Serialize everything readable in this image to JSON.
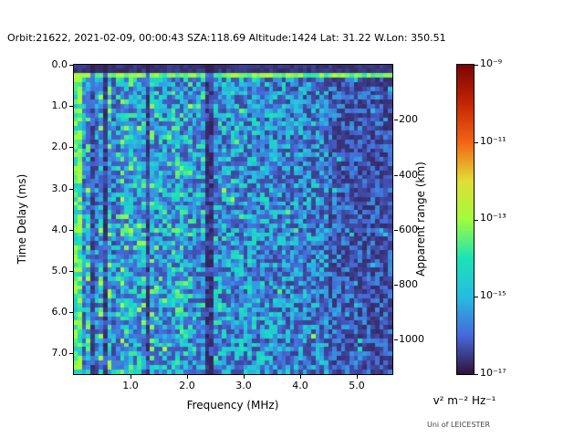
{
  "title": "Orbit:21622, 2021-02-09, 00:00:43 SZA:118.69 Altitude:1424 Lat: 31.22 W.Lon: 350.51",
  "axes": {
    "x": {
      "label": "Frequency (MHz)",
      "ticks": [
        "1.0",
        "2.0",
        "3.0",
        "4.0",
        "5.0"
      ]
    },
    "y_left": {
      "label": "Time Delay (ms)",
      "ticks": [
        "0.0",
        "1.0",
        "2.0",
        "3.0",
        "4.0",
        "5.0",
        "6.0",
        "7.0"
      ]
    },
    "y_right": {
      "label": "Apparent range (km)",
      "ticks": [
        "200",
        "400",
        "600",
        "800",
        "1000"
      ]
    }
  },
  "colorbar": {
    "ticks": [
      "10⁻⁹",
      "10⁻¹¹",
      "10⁻¹³",
      "10⁻¹⁵",
      "10⁻¹⁷"
    ],
    "unit": "v² m⁻² Hz⁻¹"
  },
  "footer": {
    "credit": "Uni of LEICESTER"
  },
  "chart_data": {
    "type": "heatmap",
    "title": "Orbit:21622, 2021-02-09, 00:00:43 SZA:118.69 Altitude:1424 Lat: 31.22 W.Lon: 350.51",
    "xlabel": "Frequency (MHz)",
    "x_range_mhz": [
      0.0,
      5.63
    ],
    "ylabel_left": "Time Delay (ms)",
    "y_range_ms": [
      0.0,
      7.5
    ],
    "ylabel_right": "Apparent range (km)",
    "right_axis_km_per_ms": 150,
    "right_axis_ticks_km": [
      200,
      400,
      600,
      800,
      1000
    ],
    "color_scale": {
      "type": "log",
      "min": 1e-17,
      "max": 1e-09,
      "unit": "v² m⁻² Hz⁻¹",
      "colormap": "turbo"
    },
    "grid": {
      "cols": 75,
      "rows": 70
    },
    "seed": 21622,
    "background_noise": {
      "level_left": 0.3,
      "level_right": 0.14,
      "description": "speckled radar noise ~1e-15 to 1e-16, intensity decreasing with frequency"
    },
    "features": [
      {
        "name": "pre-echo-dark-top",
        "type": "band",
        "time_delay_ms": [
          0.0,
          0.18
        ],
        "intensity": 0.04
      },
      {
        "name": "surface-echo",
        "type": "horizontal-line",
        "time_delay_ms": 0.28,
        "intensity": 0.45
      },
      {
        "name": "left-edge-bright-column",
        "type": "vertical-bright",
        "freq_mhz_max": 0.15
      },
      {
        "name": "absorption-band",
        "type": "vertical-dark-band",
        "freq_mhz": 0.35,
        "width_mhz": 0.05
      },
      {
        "name": "absorption-band",
        "type": "vertical-dark-band",
        "freq_mhz": 0.55,
        "width_mhz": 0.04
      },
      {
        "name": "absorption-band",
        "type": "vertical-dark-band",
        "freq_mhz": 1.32,
        "width_mhz": 0.06
      },
      {
        "name": "absorption-band",
        "type": "vertical-dark-band",
        "freq_mhz": 2.4,
        "width_mhz": 0.1
      },
      {
        "name": "high-freq-darkening",
        "type": "region",
        "freq_mhz_start": 4.5
      }
    ],
    "colormap_stops": [
      [
        0.0,
        "#30123b"
      ],
      [
        0.125,
        "#4669db"
      ],
      [
        0.25,
        "#26bce1"
      ],
      [
        0.375,
        "#1ae4b6"
      ],
      [
        0.5,
        "#a2fc3c"
      ],
      [
        0.625,
        "#e1dd37"
      ],
      [
        0.75,
        "#f36315"
      ],
      [
        0.875,
        "#c42503"
      ],
      [
        1.0,
        "#7a0403"
      ]
    ],
    "figure_bg": "#ffffff"
  }
}
